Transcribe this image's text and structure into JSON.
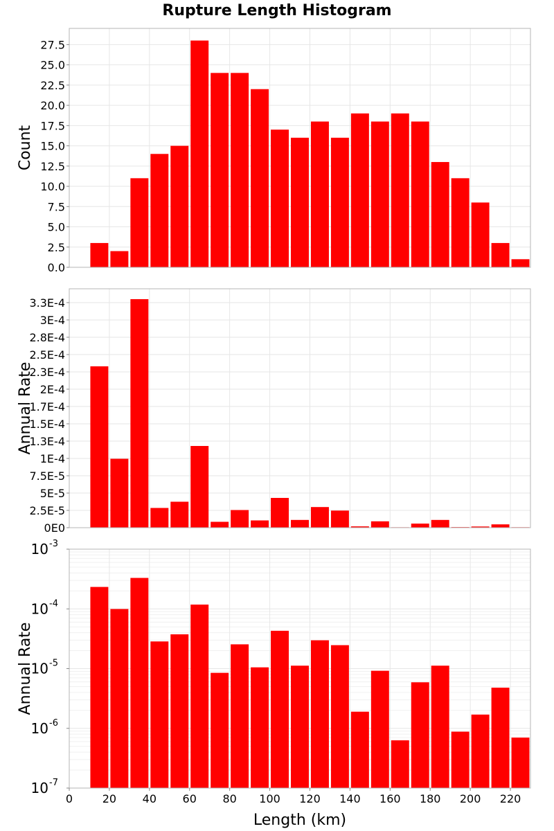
{
  "chart_data": {
    "title": "Rupture Length Histogram",
    "xlabel": "Length (km)",
    "xlim": [
      0,
      230
    ],
    "x_ticks": [
      0,
      20,
      40,
      60,
      80,
      100,
      120,
      140,
      160,
      180,
      200,
      220
    ],
    "bin_width": 10,
    "bin_centers": [
      15,
      25,
      35,
      45,
      55,
      65,
      75,
      85,
      95,
      105,
      115,
      125,
      135,
      145,
      155,
      165,
      175,
      185,
      195,
      205,
      215,
      225
    ],
    "bar_color": "#ff0000",
    "panels": [
      {
        "type": "bar",
        "ylabel": "Count",
        "yscale": "linear",
        "ylim": [
          0,
          29.5
        ],
        "y_ticks": [
          0,
          2.5,
          5,
          7.5,
          10,
          12.5,
          15,
          17.5,
          20,
          22.5,
          25,
          27.5
        ],
        "y_tick_labels": [
          "0.0",
          "2.5",
          "5.0",
          "7.5",
          "10.0",
          "12.5",
          "15.0",
          "17.5",
          "20.0",
          "22.5",
          "25.0",
          "27.5"
        ],
        "values": [
          3,
          2,
          11,
          14,
          15,
          28,
          24,
          24,
          22,
          17,
          16,
          18,
          16,
          19,
          18,
          19,
          18,
          13,
          11,
          8,
          3,
          1
        ]
      },
      {
        "type": "bar",
        "ylabel": "Annual Rate",
        "yscale": "linear",
        "ylim": [
          0,
          0.000345
        ],
        "y_ticks": [
          0,
          2.5e-05,
          5e-05,
          7.5e-05,
          0.0001,
          0.000125,
          0.00015,
          0.000175,
          0.0002,
          0.000225,
          0.00025,
          0.000275,
          0.0003,
          0.000325
        ],
        "y_tick_labels": [
          "0E0",
          "2.5E-5",
          "5E-5",
          "7.5E-5",
          "1E-4",
          "1.3E-4",
          "1.5E-4",
          "1.7E-4",
          "2E-4",
          "2.3E-4",
          "2.5E-4",
          "2.8E-4",
          "3E-4",
          "3.3E-4"
        ],
        "values": [
          0.000233,
          9.95e-05,
          0.00033,
          2.85e-05,
          3.75e-05,
          0.000118,
          8.5e-06,
          2.55e-05,
          1.05e-05,
          4.3e-05,
          1.12e-05,
          2.98e-05,
          2.47e-05,
          1.9e-06,
          9.2e-06,
          6.3e-07,
          5.9e-06,
          1.12e-05,
          8.8e-07,
          1.7e-06,
          4.8e-06,
          7e-07
        ]
      },
      {
        "type": "bar",
        "ylabel": "Annual Rate",
        "yscale": "log",
        "ylim": [
          1e-07,
          0.001
        ],
        "y_ticks": [
          1e-07,
          1e-06,
          1e-05,
          0.0001,
          0.001
        ],
        "y_tick_bases": [
          "10",
          "10",
          "10",
          "10",
          "10"
        ],
        "y_tick_exponents": [
          "-7",
          "-6",
          "-5",
          "-4",
          "-3"
        ],
        "values": [
          0.000233,
          9.95e-05,
          0.00033,
          2.85e-05,
          3.75e-05,
          0.000118,
          8.5e-06,
          2.55e-05,
          1.05e-05,
          4.3e-05,
          1.12e-05,
          2.98e-05,
          2.47e-05,
          1.9e-06,
          9.2e-06,
          6.3e-07,
          5.9e-06,
          1.12e-05,
          8.8e-07,
          1.7e-06,
          4.8e-06,
          7e-07
        ]
      }
    ]
  }
}
